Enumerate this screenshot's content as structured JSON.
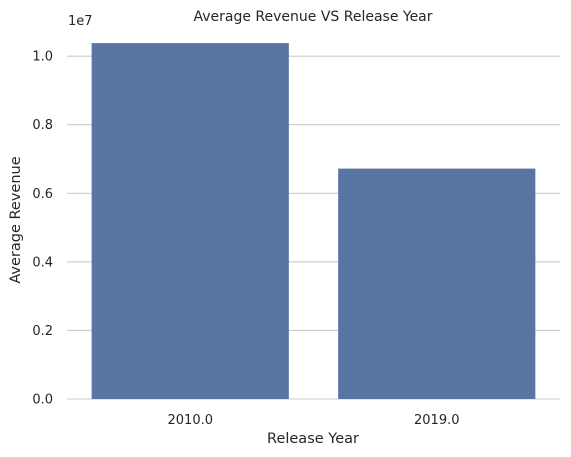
{
  "chart_data": {
    "type": "bar",
    "title": "Average Revenue VS Release Year",
    "xlabel": "Release Year",
    "ylabel": "Average Revenue",
    "categories": [
      "2010.0",
      "2019.0"
    ],
    "values": [
      10380000,
      6720000
    ],
    "ylim": [
      0,
      10500000
    ],
    "yticks": [
      0,
      2000000,
      4000000,
      6000000,
      8000000,
      10000000
    ],
    "ytick_labels": [
      "0.0",
      "0.2",
      "0.4",
      "0.6",
      "0.8",
      "1.0"
    ],
    "y_offset_label": "1e7",
    "grid": "horizontal",
    "bar_color": "#5975a4",
    "grid_color": "#cccccc"
  }
}
